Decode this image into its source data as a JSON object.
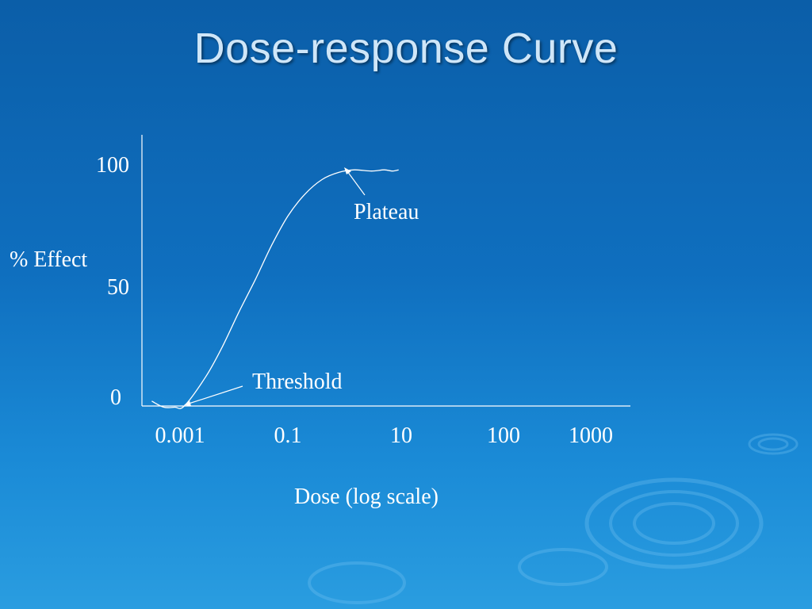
{
  "slide": {
    "title": "Dose-response Curve"
  },
  "chart_data": {
    "type": "line",
    "title": "Dose-response Curve",
    "xlabel": "Dose (log scale)",
    "ylabel": "% Effect",
    "x_scale": "log",
    "x_ticks": [
      "0.001",
      "0.1",
      "10",
      "100",
      "1000"
    ],
    "y_ticks": [
      "0",
      "50",
      "100"
    ],
    "ylim": [
      0,
      100
    ],
    "series": [
      {
        "x": [
          0.0003,
          0.0005,
          0.0008,
          0.0012,
          0.003,
          0.006,
          0.012,
          0.025,
          0.05,
          0.1,
          0.2,
          0.4,
          0.8,
          1.5,
          3,
          5,
          7,
          9
        ],
        "y": [
          2,
          -0.5,
          -0.5,
          0,
          12,
          24,
          38,
          52,
          66,
          78,
          87,
          93,
          96,
          97,
          96.5,
          97,
          96.5,
          97
        ]
      }
    ],
    "annotations": [
      {
        "text": "Plateau",
        "x": 2,
        "y": 97
      },
      {
        "text": "Threshold",
        "x": 0.0012,
        "y": 0
      }
    ],
    "grid": false,
    "legend": "none"
  }
}
